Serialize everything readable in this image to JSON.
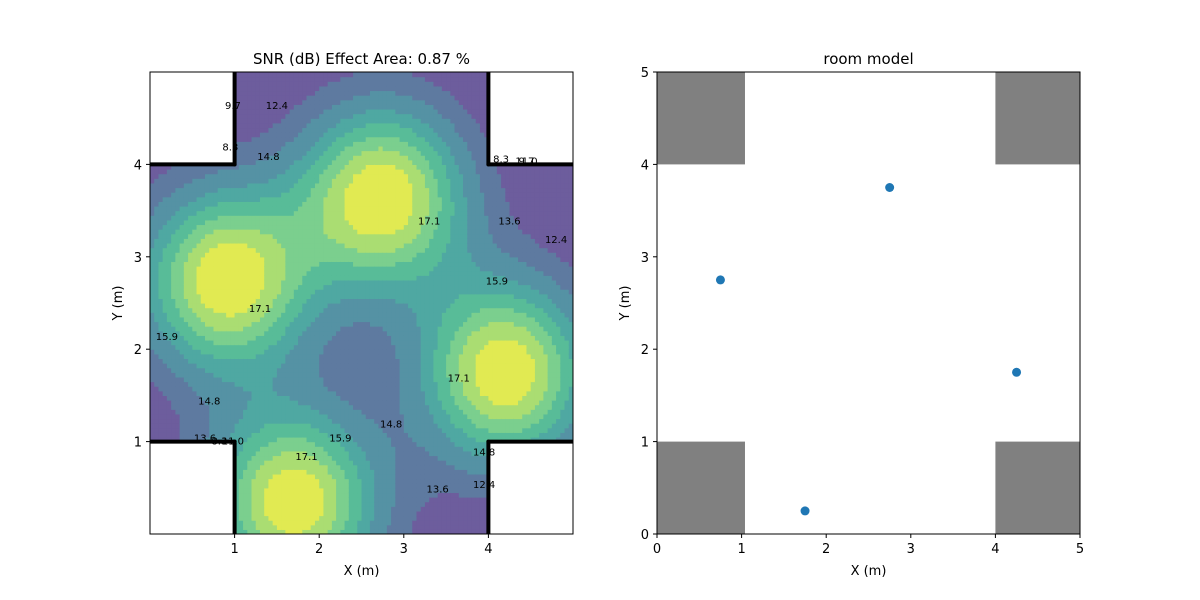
{
  "chart_data": [
    {
      "type": "contour",
      "title": "SNR (dB) Effect Area: 0.87 %",
      "xlabel": "X (m)",
      "ylabel": "Y (m)",
      "xlim": [
        0,
        5
      ],
      "ylim": [
        0,
        5
      ],
      "xticks": [
        1,
        2,
        3,
        4
      ],
      "yticks": [
        1,
        2,
        3,
        4
      ],
      "contour_levels": [
        8.3,
        9.7,
        11.0,
        12.4,
        13.6,
        14.8,
        15.9,
        17.1
      ],
      "colors": {
        "lt_9.7": "#6d5d9d",
        "9.7_11.0": "#5e7aa0",
        "11.0_12.4": "#5592a4",
        "12.4_13.6": "#4fa8a2",
        "13.6_14.8": "#58bc98",
        "14.8_15.9": "#7bcf8e",
        "15.9_17.1": "#aadd72",
        "gt_17.1": "#e1ea52"
      },
      "contour_labels": [
        {
          "text": "12.4",
          "x": 1.5,
          "y": 4.6
        },
        {
          "text": "14.8",
          "x": 1.4,
          "y": 4.05
        },
        {
          "text": "8.3",
          "x": 0.95,
          "y": 4.15
        },
        {
          "text": "9.7",
          "x": 0.98,
          "y": 4.6
        },
        {
          "text": "17.1",
          "x": 3.3,
          "y": 3.35
        },
        {
          "text": "8.3",
          "x": 4.15,
          "y": 4.02
        },
        {
          "text": "11.0",
          "x": 4.45,
          "y": 4.0
        },
        {
          "text": "9.7",
          "x": 4.45,
          "y": 4.0
        },
        {
          "text": "13.6",
          "x": 4.25,
          "y": 3.35
        },
        {
          "text": "12.4",
          "x": 4.8,
          "y": 3.15
        },
        {
          "text": "15.9",
          "x": 4.1,
          "y": 2.7
        },
        {
          "text": "17.1",
          "x": 1.3,
          "y": 2.4
        },
        {
          "text": "15.9",
          "x": 0.2,
          "y": 2.1
        },
        {
          "text": "17.1",
          "x": 3.65,
          "y": 1.65
        },
        {
          "text": "14.8",
          "x": 0.7,
          "y": 1.4
        },
        {
          "text": "14.8",
          "x": 2.85,
          "y": 1.15
        },
        {
          "text": "15.9",
          "x": 2.25,
          "y": 1.0
        },
        {
          "text": "17.1",
          "x": 1.85,
          "y": 0.8
        },
        {
          "text": "13.6",
          "x": 0.65,
          "y": 1.0
        },
        {
          "text": "11.0",
          "x": 0.98,
          "y": 0.97
        },
        {
          "text": "8.3",
          "x": 0.82,
          "y": 0.97
        },
        {
          "text": "13.6",
          "x": 3.4,
          "y": 0.45
        },
        {
          "text": "14.8",
          "x": 3.95,
          "y": 0.85
        },
        {
          "text": "12.4",
          "x": 3.95,
          "y": 0.5
        }
      ]
    },
    {
      "type": "scatter",
      "title": "room model",
      "xlabel": "X (m)",
      "ylabel": "Y (m)",
      "xlim": [
        0,
        5
      ],
      "ylim": [
        0,
        5
      ],
      "xticks": [
        0,
        1,
        2,
        3,
        4,
        5
      ],
      "yticks": [
        0,
        1,
        2,
        3,
        4,
        5
      ],
      "points": [
        {
          "x": 0.75,
          "y": 2.75
        },
        {
          "x": 2.75,
          "y": 3.75
        },
        {
          "x": 4.25,
          "y": 1.75
        },
        {
          "x": 1.75,
          "y": 0.25
        }
      ],
      "point_color": "#1f77b4",
      "obstacle_color": "#808080",
      "obstacles": [
        {
          "x0": 0,
          "x1": 1,
          "y0": 4,
          "y1": 5
        },
        {
          "x0": 4,
          "x1": 5,
          "y0": 4,
          "y1": 5
        },
        {
          "x0": 0,
          "x1": 1,
          "y0": 0,
          "y1": 1
        },
        {
          "x0": 4,
          "x1": 5,
          "y0": 0,
          "y1": 1
        }
      ]
    }
  ]
}
